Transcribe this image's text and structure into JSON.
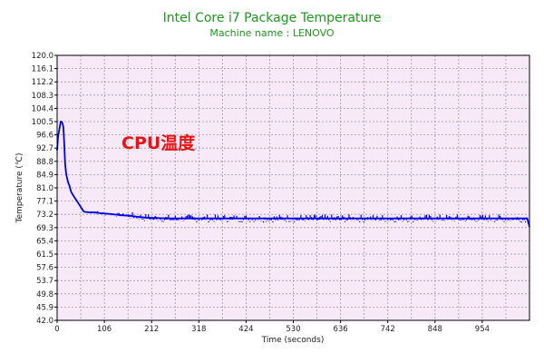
{
  "chart_data": {
    "type": "line",
    "title": "Intel Core i7 Package Temperature",
    "subtitle": "Machine name : LENOVO",
    "xlabel": "Time (seconds)",
    "ylabel": "Temperature (℃)",
    "annotation": "CPU温度",
    "xlim": [
      0,
      1060
    ],
    "ylim": [
      42.0,
      120.0
    ],
    "xticks": [
      "0",
      "106",
      "212",
      "318",
      "424",
      "530",
      "636",
      "742",
      "848",
      "954"
    ],
    "yticks": [
      "42.0",
      "45.9",
      "49.8",
      "53.7",
      "57.6",
      "61.5",
      "65.4",
      "69.3",
      "73.2",
      "77.1",
      "81.0",
      "84.9",
      "88.8",
      "92.7",
      "96.6",
      "100.5",
      "104.4",
      "108.3",
      "112.2",
      "116.1",
      "120.0"
    ],
    "grid": true,
    "series": [
      {
        "x": [
          0,
          2,
          4,
          6,
          8,
          10,
          12,
          14,
          16,
          18,
          20,
          22,
          25,
          28,
          31,
          35,
          40,
          45,
          50,
          55,
          60,
          70,
          80,
          90,
          100,
          120,
          140,
          160,
          180,
          200,
          250,
          300,
          350,
          400,
          450,
          500,
          550,
          600,
          650,
          700,
          750,
          800,
          850,
          900,
          950,
          1000,
          1040,
          1055,
          1060
        ],
        "y": [
          92.0,
          96.0,
          97.5,
          99.0,
          100.5,
          100.5,
          100.0,
          99.0,
          94.0,
          88.0,
          85.5,
          84.0,
          82.5,
          81.5,
          80.0,
          79.0,
          78.0,
          77.0,
          76.0,
          75.0,
          74.0,
          73.8,
          73.8,
          73.7,
          73.5,
          73.3,
          73.0,
          72.8,
          72.5,
          72.2,
          72.0,
          72.0,
          72.0,
          72.0,
          72.0,
          72.0,
          72.0,
          72.0,
          72.0,
          72.0,
          72.0,
          72.0,
          72.0,
          72.0,
          72.0,
          72.0,
          72.0,
          72.0,
          69.5
        ],
        "color": "#0000ee"
      }
    ]
  }
}
